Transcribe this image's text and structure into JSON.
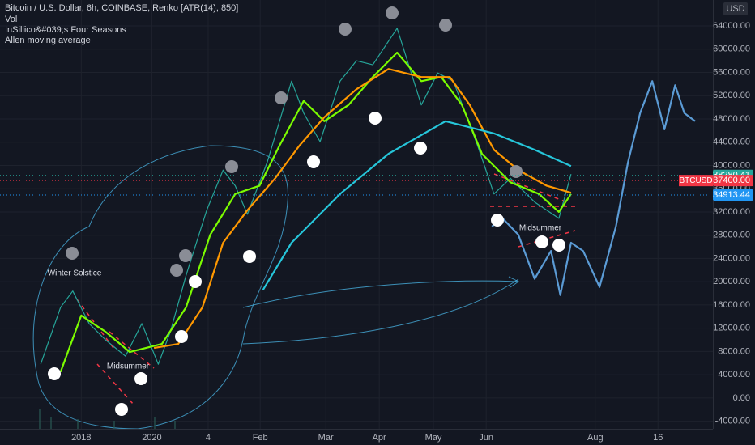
{
  "chart_data": {
    "type": "line",
    "title": "Bitcoin / U.S. Dollar, 6h, COINBASE, Renko [ATR(14), 850]",
    "legend_items": [
      "Vol",
      "InSillico&#039;s Four Seasons",
      "Allen moving average"
    ],
    "currency": "USD",
    "annotations": [
      "Winter Solstice",
      "Midsummer",
      "Midsummer"
    ],
    "xlim": [
      0,
      100
    ],
    "xticks": [
      {
        "value": 11.4,
        "label": "2018"
      },
      {
        "value": 21.3,
        "label": "2020"
      },
      {
        "value": 29.2,
        "label": "4"
      },
      {
        "value": 36.5,
        "label": "Feb"
      },
      {
        "value": 45.7,
        "label": "Mar"
      },
      {
        "value": 53.2,
        "label": "Apr"
      },
      {
        "value": 60.8,
        "label": "May"
      },
      {
        "value": 68.2,
        "label": "Jun"
      },
      {
        "value": 83.5,
        "label": "Aug"
      },
      {
        "value": 92.3,
        "label": "16"
      }
    ],
    "ylim": [
      -5300,
      68450
    ],
    "yticks": [
      {
        "value": -4000,
        "label": "-4000.00"
      },
      {
        "value": 0,
        "label": "0.00"
      },
      {
        "value": 4000,
        "label": "4000.00"
      },
      {
        "value": 8000,
        "label": "8000.00"
      },
      {
        "value": 12000,
        "label": "12000.00"
      },
      {
        "value": 16000,
        "label": "16000.00"
      },
      {
        "value": 20000,
        "label": "20000.00"
      },
      {
        "value": 24000,
        "label": "24000.00"
      },
      {
        "value": 28000,
        "label": "28000.00"
      },
      {
        "value": 32000,
        "label": "32000.00"
      },
      {
        "value": 36000,
        "label": "36000.00"
      },
      {
        "value": 40000,
        "label": "40000.00"
      },
      {
        "value": 44000,
        "label": "44000.00"
      },
      {
        "value": 48000,
        "label": "48000.00"
      },
      {
        "value": 52000,
        "label": "52000.00"
      },
      {
        "value": 56000,
        "label": "56000.00"
      },
      {
        "value": 60000,
        "label": "60000.00"
      },
      {
        "value": 64000,
        "label": "64000.00"
      }
    ],
    "grid": true,
    "series": [
      {
        "color": "#26a69a",
        "x": [
          5.7,
          8.5,
          10.2,
          12.5,
          14.8,
          17.6,
          19.9,
          22.2,
          23.9,
          26.1,
          29,
          31.3,
          33,
          34.7,
          37.5,
          40.9,
          42.6,
          44.9,
          47.7,
          50,
          52.3,
          55.7,
          59.1,
          61.4,
          63.6,
          67,
          69.3,
          71.6,
          75,
          78.4,
          80.1
        ],
        "values": [
          5800,
          15600,
          18400,
          12800,
          10000,
          7200,
          12800,
          5800,
          11400,
          21100,
          32300,
          39200,
          36500,
          31600,
          40600,
          54500,
          49000,
          44100,
          54500,
          58000,
          57300,
          63600,
          50400,
          55900,
          54500,
          43400,
          35100,
          37800,
          33700,
          30900,
          38500
        ]
      },
      {
        "color": "#7cfc00",
        "x": [
          8.5,
          11.4,
          14.8,
          18.2,
          22.7,
          26.1,
          29.5,
          33,
          36.4,
          39.2,
          42.6,
          45.5,
          48.9,
          52.3,
          55.7,
          59.1,
          61.9,
          64.8,
          67.6,
          71.6,
          75.6,
          78.4,
          80.1
        ],
        "values": [
          4500,
          14200,
          11400,
          7900,
          9300,
          15600,
          28100,
          35100,
          36500,
          43400,
          51100,
          47600,
          50400,
          55200,
          59400,
          54500,
          55200,
          50400,
          42000,
          37100,
          35100,
          32000,
          35100
        ]
      },
      {
        "color": "#ff9800",
        "x": [
          21.6,
          25,
          28.4,
          31.3,
          34.7,
          38.6,
          42,
          45.5,
          50,
          54.5,
          59.1,
          63.1,
          65.9,
          69.3,
          72.7,
          76.7,
          80.1
        ],
        "values": [
          8600,
          9300,
          15600,
          26700,
          32300,
          37800,
          43400,
          48300,
          53100,
          56600,
          55200,
          55200,
          50400,
          42700,
          39200,
          36500,
          35300
        ]
      },
      {
        "color": "#26c6da",
        "x": [
          36.9,
          40.9,
          47.7,
          54.5,
          62.5,
          69.3,
          75,
          80.1
        ],
        "values": [
          18600,
          26700,
          35100,
          42000,
          47600,
          45500,
          42700,
          39900
        ]
      },
      {
        "color": "#5b9bd5",
        "x": [
          69,
          70.5,
          72.7,
          75,
          77.3,
          78.6,
          80.1,
          81.8,
          84.1,
          86.4,
          88.1,
          89.8,
          91.5,
          93.2,
          94.7,
          96,
          97.5
        ],
        "values": [
          29500,
          30900,
          28100,
          20500,
          25300,
          17700,
          26700,
          25300,
          19100,
          29500,
          40600,
          49000,
          54500,
          46200,
          53800,
          49000,
          47600
        ]
      }
    ],
    "price_labels": [
      {
        "value": 38280.41,
        "label": "38280.41",
        "color": "#26a69a"
      },
      {
        "symbol": "BTCUSD",
        "value": 37400,
        "label": "37400.00",
        "color": "#f23645"
      },
      {
        "value": 34913.44,
        "label": "34913.44",
        "color": "#2196f3"
      }
    ]
  }
}
